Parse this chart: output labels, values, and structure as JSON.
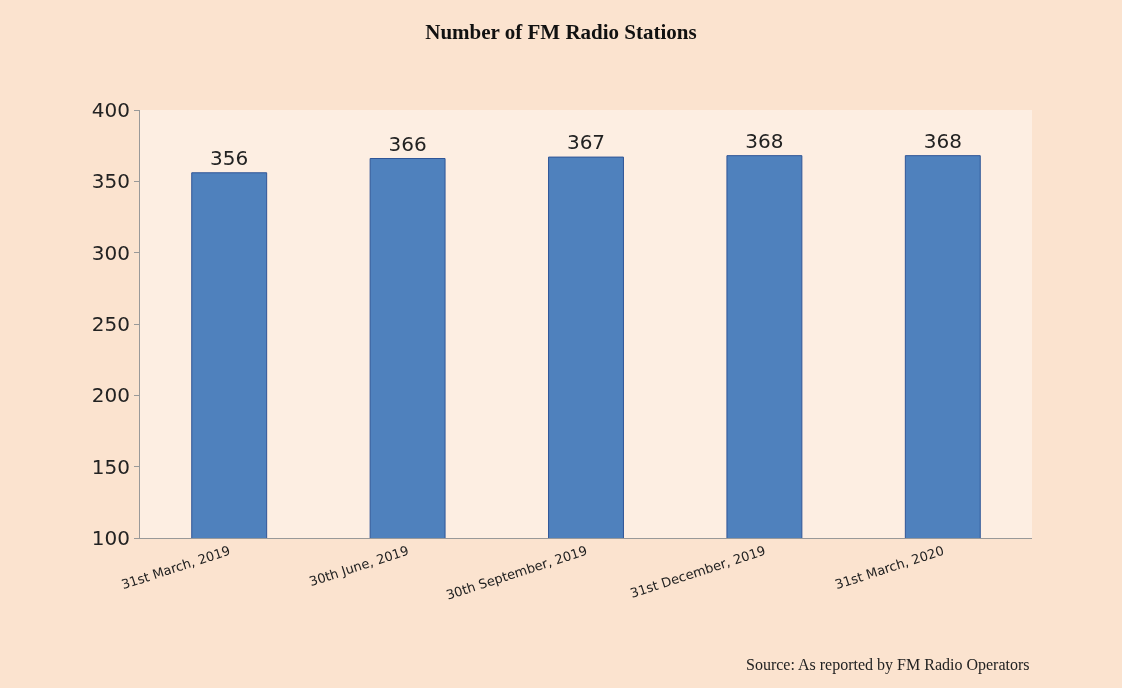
{
  "chart_data": {
    "type": "bar",
    "title": "Number of FM Radio Stations",
    "categories": [
      "31st March, 2019",
      "30th June, 2019",
      "30th September, 2019",
      "31st December, 2019",
      "31st March, 2020"
    ],
    "values": [
      356,
      366,
      367,
      368,
      368
    ],
    "color": "#4f81bd",
    "ylim": [
      100,
      400
    ],
    "yticks": [
      100,
      150,
      200,
      250,
      300,
      350,
      400
    ],
    "grid": false,
    "data_labels": true,
    "annotations": [
      "Source: As reported by FM Radio Operators"
    ]
  }
}
